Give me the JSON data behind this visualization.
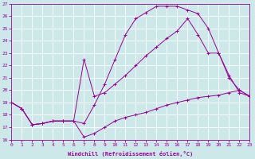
{
  "xlabel": "Windchill (Refroidissement éolien,°C)",
  "bg_color": "#cce8e8",
  "line_color": "#990099",
  "grid_color": "#ffffff",
  "xmin": 0,
  "xmax": 23,
  "ymin": 16,
  "ymax": 27,
  "line1_x": [
    0,
    1,
    2,
    3,
    4,
    5,
    6,
    7,
    8,
    9,
    10,
    11,
    12,
    13,
    14,
    15,
    16,
    17,
    18,
    19,
    20,
    21,
    22,
    23
  ],
  "line1_y": [
    19.0,
    18.5,
    17.2,
    17.3,
    17.5,
    17.5,
    17.5,
    17.3,
    18.8,
    20.5,
    22.5,
    24.5,
    25.8,
    26.3,
    26.8,
    26.8,
    26.8,
    26.5,
    26.2,
    25.0,
    23.0,
    21.0,
    20.0,
    19.5
  ],
  "line2_x": [
    0,
    1,
    2,
    3,
    4,
    5,
    6,
    7,
    8,
    9,
    10,
    11,
    12,
    13,
    14,
    15,
    16,
    17,
    18,
    19,
    20,
    21,
    22,
    23
  ],
  "line2_y": [
    19.0,
    18.5,
    17.2,
    17.3,
    17.5,
    17.5,
    17.5,
    22.5,
    19.5,
    19.8,
    20.5,
    21.2,
    22.0,
    22.8,
    23.5,
    24.2,
    24.8,
    25.8,
    24.5,
    23.0,
    23.0,
    21.2,
    19.8,
    19.5
  ],
  "line3_x": [
    0,
    1,
    2,
    3,
    4,
    5,
    6,
    7,
    8,
    9,
    10,
    11,
    12,
    13,
    14,
    15,
    16,
    17,
    18,
    19,
    20,
    21,
    22,
    23
  ],
  "line3_y": [
    19.0,
    18.5,
    17.2,
    17.3,
    17.5,
    17.5,
    17.5,
    16.2,
    16.5,
    17.0,
    17.5,
    17.8,
    18.0,
    18.2,
    18.5,
    18.8,
    19.0,
    19.2,
    19.4,
    19.5,
    19.6,
    19.8,
    20.0,
    19.5
  ]
}
